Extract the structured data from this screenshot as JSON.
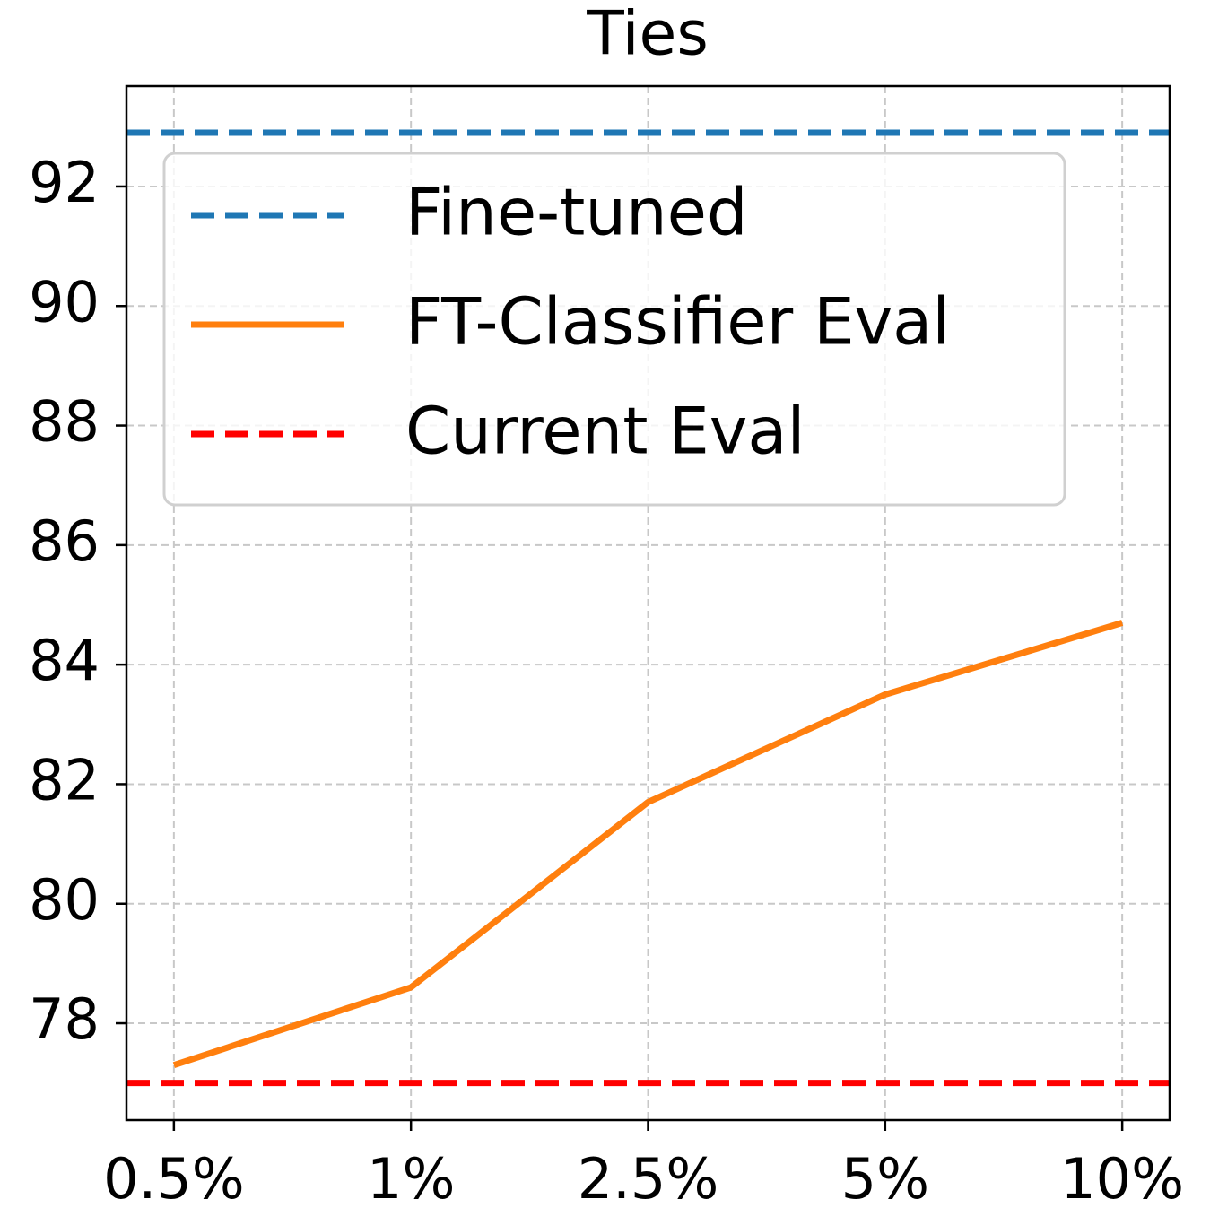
{
  "chart_data": {
    "type": "line",
    "title": "Ties",
    "categories": [
      "0.5%",
      "1%",
      "2.5%",
      "5%",
      "10%"
    ],
    "series": [
      {
        "name": "Fine-tuned",
        "color": "#1f77b4",
        "linestyle": "dashed",
        "value": 92.9
      },
      {
        "name": "FT-Classifier Eval",
        "color": "#ff7f0e",
        "linestyle": "solid",
        "values": [
          77.3,
          78.6,
          81.7,
          83.5,
          84.7
        ]
      },
      {
        "name": "Current Eval",
        "color": "#ff0000",
        "linestyle": "dashed",
        "value": 77.0
      }
    ],
    "ylim": [
      76.38,
      93.68
    ],
    "yticks": [
      78,
      80,
      82,
      84,
      86,
      88,
      90,
      92
    ],
    "grid": true,
    "legend": "upper left"
  }
}
